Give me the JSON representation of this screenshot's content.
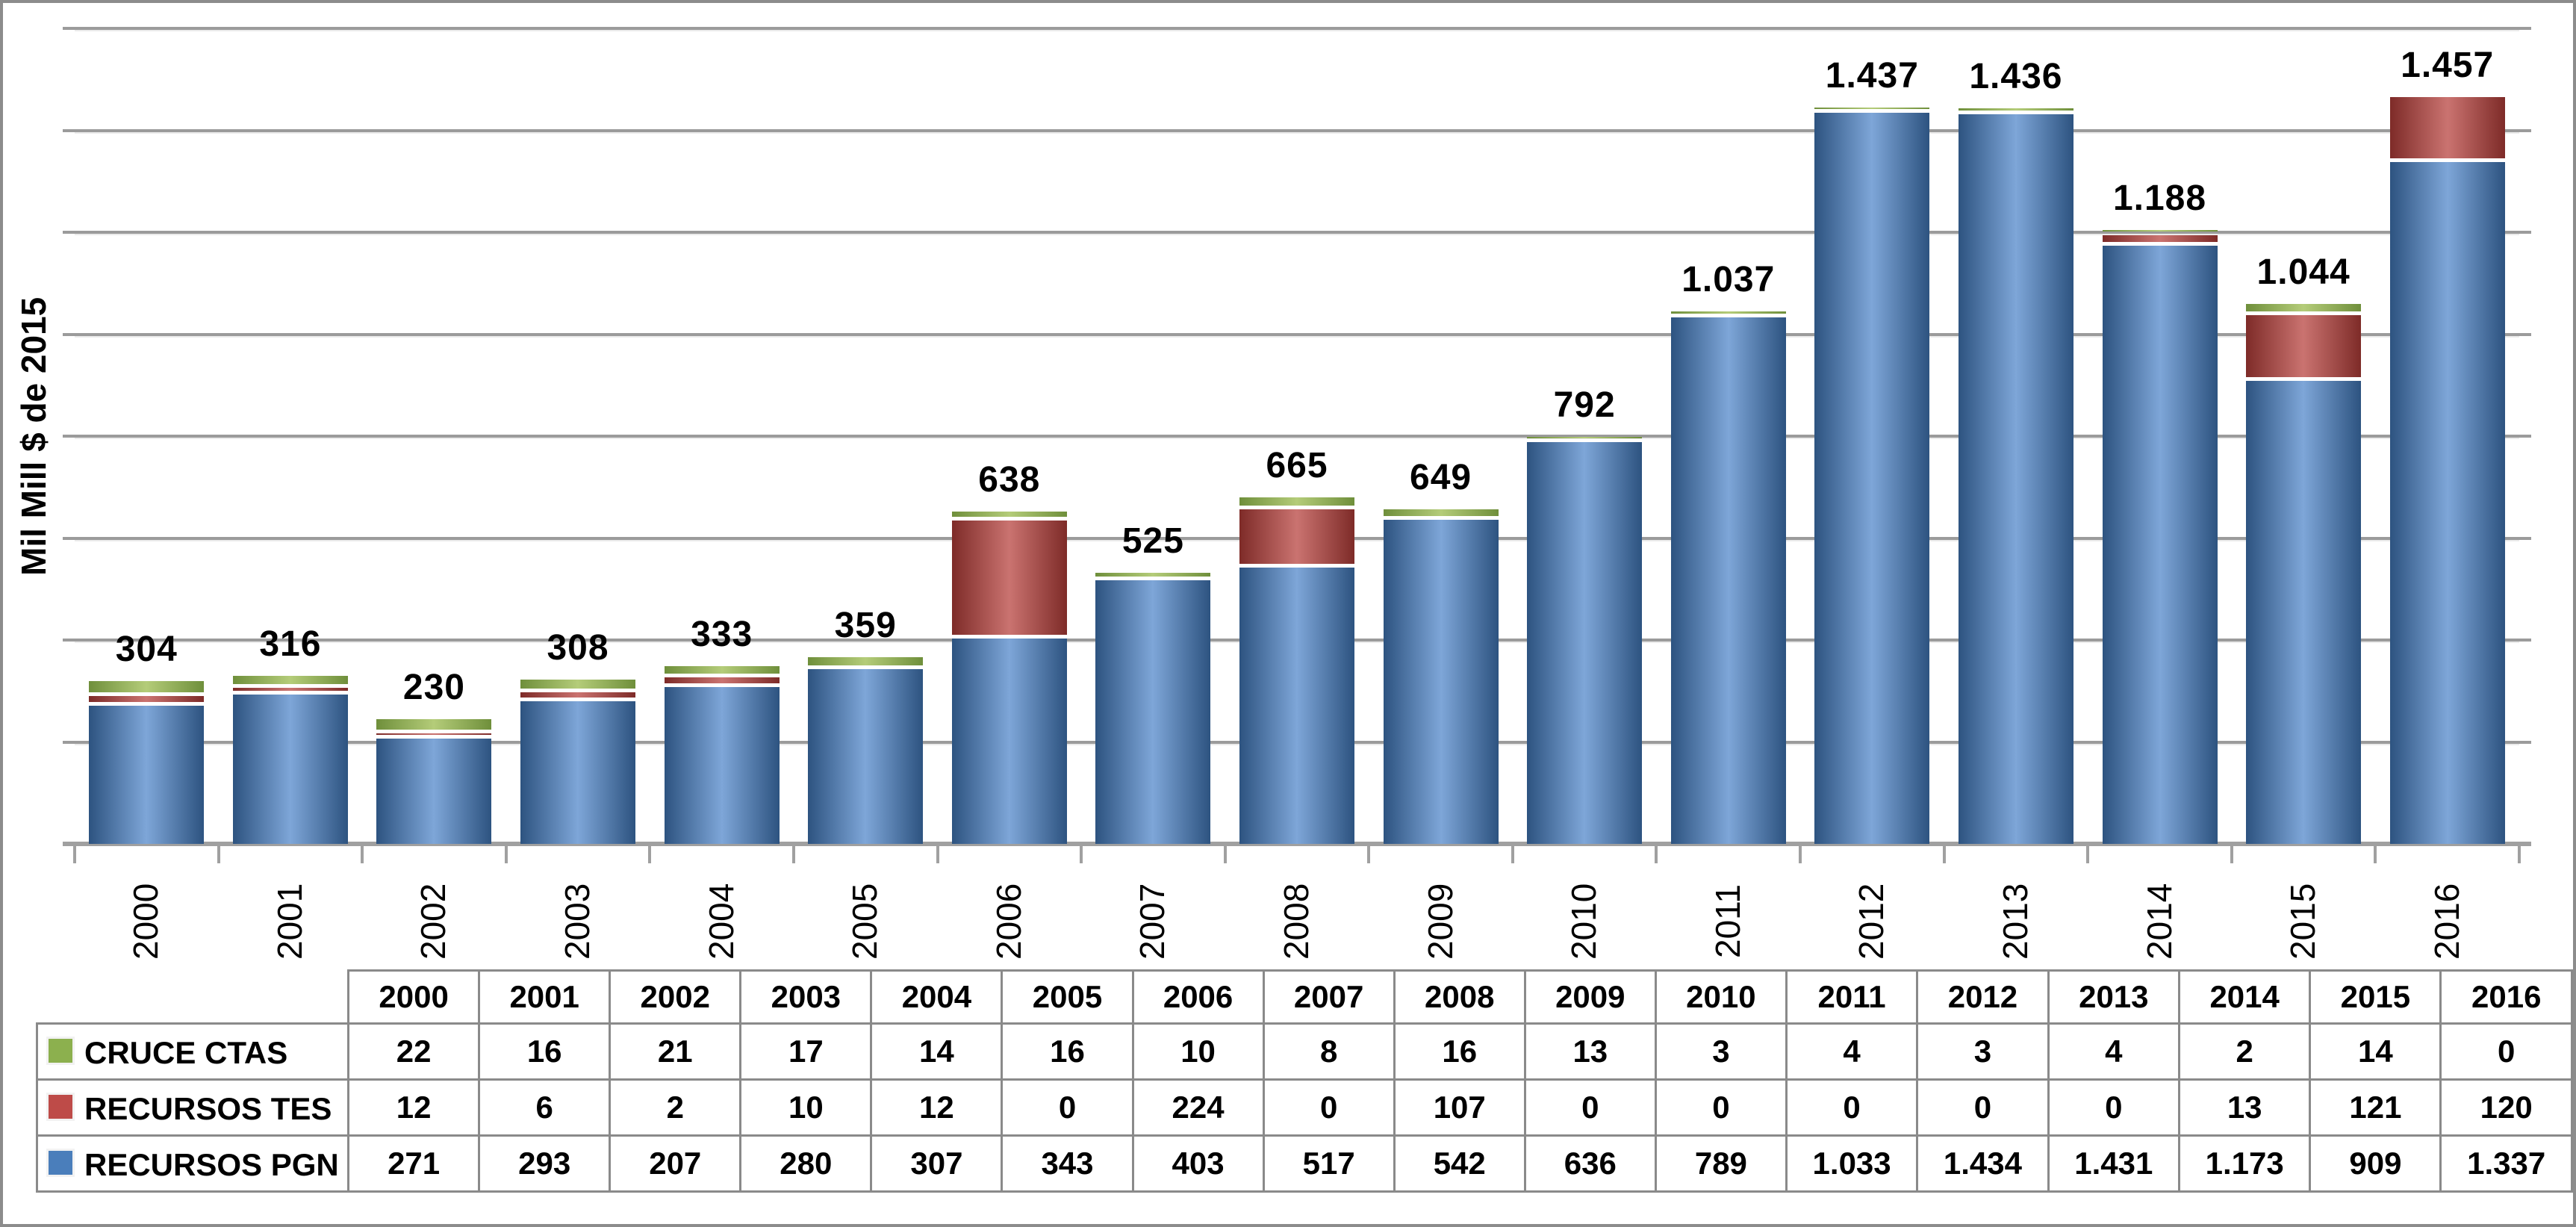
{
  "frame": {
    "border_color": "#8C8C8C",
    "gridline_color": "#9B9B9B",
    "axis_color": "#A0A0A0"
  },
  "chart_data": {
    "type": "bar",
    "stacked": true,
    "title": "",
    "xlabel": "",
    "ylabel": "Mil Mill $ de 2015",
    "ylim": [
      0,
      1600
    ],
    "grid_step": 200,
    "grid": true,
    "legend_position": "table-left",
    "categories": [
      "2000",
      "2001",
      "2002",
      "2003",
      "2004",
      "2005",
      "2006",
      "2007",
      "2008",
      "2009",
      "2010",
      "2011",
      "2012",
      "2013",
      "2014",
      "2015",
      "2016"
    ],
    "series": [
      {
        "name": "CRUCE CTAS",
        "swatch": "#8CB04E",
        "edge": "#6F8F3B",
        "mid": "#B4CC79",
        "values": [
          22,
          16,
          21,
          17,
          14,
          16,
          10,
          8,
          16,
          13,
          3,
          4,
          3,
          4,
          2,
          14,
          0
        ],
        "display": [
          "22",
          "16",
          "21",
          "17",
          "14",
          "16",
          "10",
          "8",
          "16",
          "13",
          "3",
          "4",
          "3",
          "4",
          "2",
          "14",
          "0"
        ]
      },
      {
        "name": "RECURSOS TES",
        "swatch": "#BE4B48",
        "edge": "#7E2B28",
        "mid": "#CA7370",
        "values": [
          12,
          6,
          2,
          10,
          12,
          0,
          224,
          0,
          107,
          0,
          0,
          0,
          0,
          0,
          13,
          121,
          120
        ],
        "display": [
          "12",
          "6",
          "2",
          "10",
          "12",
          "0",
          "224",
          "0",
          "107",
          "0",
          "0",
          "0",
          "0",
          "0",
          "13",
          "121",
          "120"
        ]
      },
      {
        "name": "RECURSOS PGN",
        "swatch": "#4A7EBB",
        "edge": "#2D5380",
        "mid": "#7EA6D8",
        "values": [
          271,
          293,
          207,
          280,
          307,
          343,
          403,
          517,
          542,
          636,
          789,
          1033,
          1434,
          1431,
          1173,
          909,
          1337
        ],
        "display": [
          "271",
          "293",
          "207",
          "280",
          "307",
          "343",
          "403",
          "517",
          "542",
          "636",
          "789",
          "1.033",
          "1.434",
          "1.431",
          "1.173",
          "909",
          "1.337"
        ]
      }
    ],
    "stack_order_bottom_to_top": [
      "RECURSOS PGN",
      "RECURSOS TES",
      "CRUCE CTAS"
    ],
    "total_labels": [
      "304",
      "316",
      "230",
      "308",
      "333",
      "359",
      "638",
      "525",
      "665",
      "649",
      "792",
      "1.037",
      "1.437",
      "1.436",
      "1.188",
      "1.044",
      "1.457"
    ]
  },
  "table": {
    "corner_label": ""
  }
}
